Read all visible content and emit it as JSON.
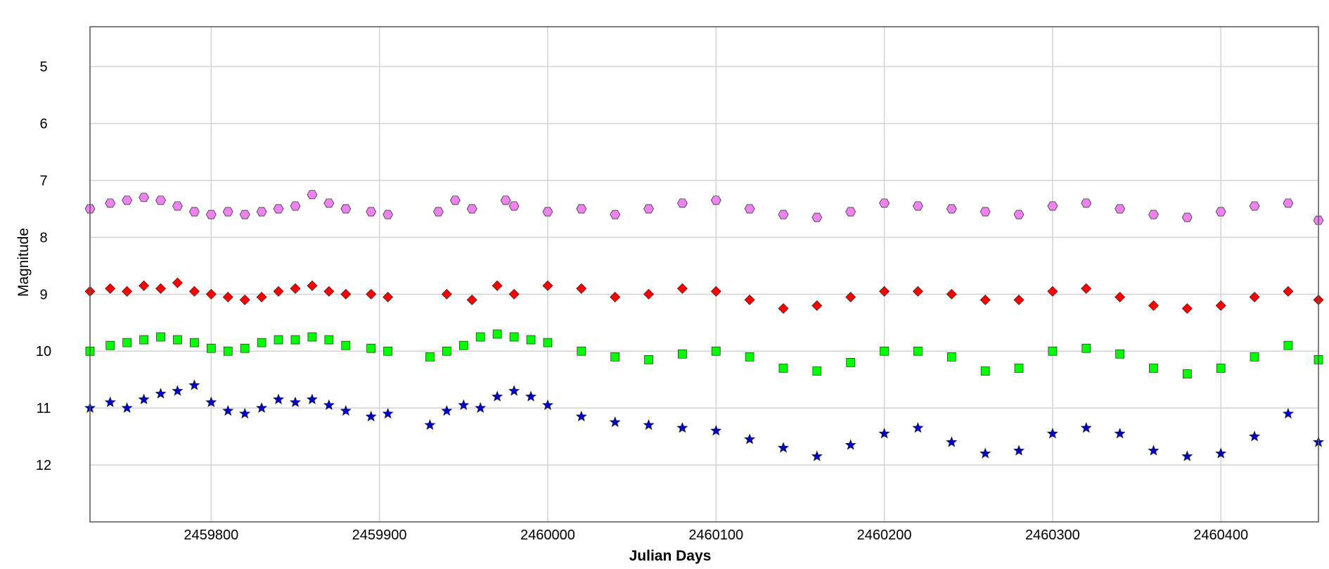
{
  "chart_data": {
    "type": "scatter",
    "title": "",
    "xlabel": "Julian Days",
    "ylabel": "Magnitude",
    "xlim": [
      2459728,
      2460458
    ],
    "ylim": [
      13.0,
      4.3
    ],
    "y_inverted": true,
    "grid": true,
    "xticks": [
      2459800,
      2459900,
      2460000,
      2460100,
      2460200,
      2460300,
      2460400
    ],
    "xtick_labels": [
      "2459800",
      "2459900",
      "2460000",
      "2460100",
      "2460200",
      "2460300",
      "2460400"
    ],
    "yticks": [
      5,
      6,
      7,
      8,
      9,
      10,
      11,
      12
    ],
    "ytick_labels": [
      "5",
      "6",
      "7",
      "8",
      "9",
      "10",
      "11",
      "12"
    ],
    "series": [
      {
        "marker": "hexagon",
        "color": "#ee82ee",
        "points": [
          [
            2459728,
            7.5
          ],
          [
            2459740,
            7.4
          ],
          [
            2459750,
            7.35
          ],
          [
            2459760,
            7.3
          ],
          [
            2459770,
            7.35
          ],
          [
            2459780,
            7.45
          ],
          [
            2459790,
            7.55
          ],
          [
            2459800,
            7.6
          ],
          [
            2459810,
            7.55
          ],
          [
            2459820,
            7.6
          ],
          [
            2459830,
            7.55
          ],
          [
            2459840,
            7.5
          ],
          [
            2459850,
            7.45
          ],
          [
            2459860,
            7.25
          ],
          [
            2459870,
            7.4
          ],
          [
            2459880,
            7.5
          ],
          [
            2459895,
            7.55
          ],
          [
            2459905,
            7.6
          ],
          [
            2459935,
            7.55
          ],
          [
            2459945,
            7.35
          ],
          [
            2459955,
            7.5
          ],
          [
            2459975,
            7.35
          ],
          [
            2459980,
            7.45
          ],
          [
            2460000,
            7.55
          ],
          [
            2460020,
            7.5
          ],
          [
            2460040,
            7.6
          ],
          [
            2460060,
            7.5
          ],
          [
            2460080,
            7.4
          ],
          [
            2460100,
            7.35
          ],
          [
            2460120,
            7.5
          ],
          [
            2460140,
            7.6
          ],
          [
            2460160,
            7.65
          ],
          [
            2460180,
            7.55
          ],
          [
            2460200,
            7.4
          ],
          [
            2460220,
            7.45
          ],
          [
            2460240,
            7.5
          ],
          [
            2460260,
            7.55
          ],
          [
            2460280,
            7.6
          ],
          [
            2460300,
            7.45
          ],
          [
            2460320,
            7.4
          ],
          [
            2460340,
            7.5
          ],
          [
            2460360,
            7.6
          ],
          [
            2460380,
            7.65
          ],
          [
            2460400,
            7.55
          ],
          [
            2460420,
            7.45
          ],
          [
            2460440,
            7.4
          ],
          [
            2460458,
            7.7
          ]
        ]
      },
      {
        "marker": "diamond",
        "color": "#ff0000",
        "points": [
          [
            2459728,
            8.95
          ],
          [
            2459740,
            8.9
          ],
          [
            2459750,
            8.95
          ],
          [
            2459760,
            8.85
          ],
          [
            2459770,
            8.9
          ],
          [
            2459780,
            8.8
          ],
          [
            2459790,
            8.95
          ],
          [
            2459800,
            9.0
          ],
          [
            2459810,
            9.05
          ],
          [
            2459820,
            9.1
          ],
          [
            2459830,
            9.05
          ],
          [
            2459840,
            8.95
          ],
          [
            2459850,
            8.9
          ],
          [
            2459860,
            8.85
          ],
          [
            2459870,
            8.95
          ],
          [
            2459880,
            9.0
          ],
          [
            2459895,
            9.0
          ],
          [
            2459905,
            9.05
          ],
          [
            2459940,
            9.0
          ],
          [
            2459955,
            9.1
          ],
          [
            2459970,
            8.85
          ],
          [
            2459980,
            9.0
          ],
          [
            2460000,
            8.85
          ],
          [
            2460020,
            8.9
          ],
          [
            2460040,
            9.05
          ],
          [
            2460060,
            9.0
          ],
          [
            2460080,
            8.9
          ],
          [
            2460100,
            8.95
          ],
          [
            2460120,
            9.1
          ],
          [
            2460140,
            9.25
          ],
          [
            2460160,
            9.2
          ],
          [
            2460180,
            9.05
          ],
          [
            2460200,
            8.95
          ],
          [
            2460220,
            8.95
          ],
          [
            2460240,
            9.0
          ],
          [
            2460260,
            9.1
          ],
          [
            2460280,
            9.1
          ],
          [
            2460300,
            8.95
          ],
          [
            2460320,
            8.9
          ],
          [
            2460340,
            9.05
          ],
          [
            2460360,
            9.2
          ],
          [
            2460380,
            9.25
          ],
          [
            2460400,
            9.2
          ],
          [
            2460420,
            9.05
          ],
          [
            2460440,
            8.95
          ],
          [
            2460458,
            9.1
          ]
        ]
      },
      {
        "marker": "square",
        "color": "#00ff00",
        "points": [
          [
            2459728,
            10.0
          ],
          [
            2459740,
            9.9
          ],
          [
            2459750,
            9.85
          ],
          [
            2459760,
            9.8
          ],
          [
            2459770,
            9.75
          ],
          [
            2459780,
            9.8
          ],
          [
            2459790,
            9.85
          ],
          [
            2459800,
            9.95
          ],
          [
            2459810,
            10.0
          ],
          [
            2459820,
            9.95
          ],
          [
            2459830,
            9.85
          ],
          [
            2459840,
            9.8
          ],
          [
            2459850,
            9.8
          ],
          [
            2459860,
            9.75
          ],
          [
            2459870,
            9.8
          ],
          [
            2459880,
            9.9
          ],
          [
            2459895,
            9.95
          ],
          [
            2459905,
            10.0
          ],
          [
            2459930,
            10.1
          ],
          [
            2459940,
            10.0
          ],
          [
            2459950,
            9.9
          ],
          [
            2459960,
            9.75
          ],
          [
            2459970,
            9.7
          ],
          [
            2459980,
            9.75
          ],
          [
            2459990,
            9.8
          ],
          [
            2460000,
            9.85
          ],
          [
            2460020,
            10.0
          ],
          [
            2460040,
            10.1
          ],
          [
            2460060,
            10.15
          ],
          [
            2460080,
            10.05
          ],
          [
            2460100,
            10.0
          ],
          [
            2460120,
            10.1
          ],
          [
            2460140,
            10.3
          ],
          [
            2460160,
            10.35
          ],
          [
            2460180,
            10.2
          ],
          [
            2460200,
            10.0
          ],
          [
            2460220,
            10.0
          ],
          [
            2460240,
            10.1
          ],
          [
            2460260,
            10.35
          ],
          [
            2460280,
            10.3
          ],
          [
            2460300,
            10.0
          ],
          [
            2460320,
            9.95
          ],
          [
            2460340,
            10.05
          ],
          [
            2460360,
            10.3
          ],
          [
            2460380,
            10.4
          ],
          [
            2460400,
            10.3
          ],
          [
            2460420,
            10.1
          ],
          [
            2460440,
            9.9
          ],
          [
            2460458,
            10.15
          ]
        ]
      },
      {
        "marker": "star",
        "color": "#0000cd",
        "points": [
          [
            2459728,
            11.0
          ],
          [
            2459740,
            10.9
          ],
          [
            2459750,
            11.0
          ],
          [
            2459760,
            10.85
          ],
          [
            2459770,
            10.75
          ],
          [
            2459780,
            10.7
          ],
          [
            2459790,
            10.6
          ],
          [
            2459800,
            10.9
          ],
          [
            2459810,
            11.05
          ],
          [
            2459820,
            11.1
          ],
          [
            2459830,
            11.0
          ],
          [
            2459840,
            10.85
          ],
          [
            2459850,
            10.9
          ],
          [
            2459860,
            10.85
          ],
          [
            2459870,
            10.95
          ],
          [
            2459880,
            11.05
          ],
          [
            2459895,
            11.15
          ],
          [
            2459905,
            11.1
          ],
          [
            2459930,
            11.3
          ],
          [
            2459940,
            11.05
          ],
          [
            2459950,
            10.95
          ],
          [
            2459960,
            11.0
          ],
          [
            2459970,
            10.8
          ],
          [
            2459980,
            10.7
          ],
          [
            2459990,
            10.8
          ],
          [
            2460000,
            10.95
          ],
          [
            2460020,
            11.15
          ],
          [
            2460040,
            11.25
          ],
          [
            2460060,
            11.3
          ],
          [
            2460080,
            11.35
          ],
          [
            2460100,
            11.4
          ],
          [
            2460120,
            11.55
          ],
          [
            2460140,
            11.7
          ],
          [
            2460160,
            11.85
          ],
          [
            2460180,
            11.65
          ],
          [
            2460200,
            11.45
          ],
          [
            2460220,
            11.35
          ],
          [
            2460240,
            11.6
          ],
          [
            2460260,
            11.8
          ],
          [
            2460280,
            11.75
          ],
          [
            2460300,
            11.45
          ],
          [
            2460320,
            11.35
          ],
          [
            2460340,
            11.45
          ],
          [
            2460360,
            11.75
          ],
          [
            2460380,
            11.85
          ],
          [
            2460400,
            11.8
          ],
          [
            2460420,
            11.5
          ],
          [
            2460440,
            11.1
          ],
          [
            2460458,
            11.6
          ]
        ]
      }
    ]
  }
}
